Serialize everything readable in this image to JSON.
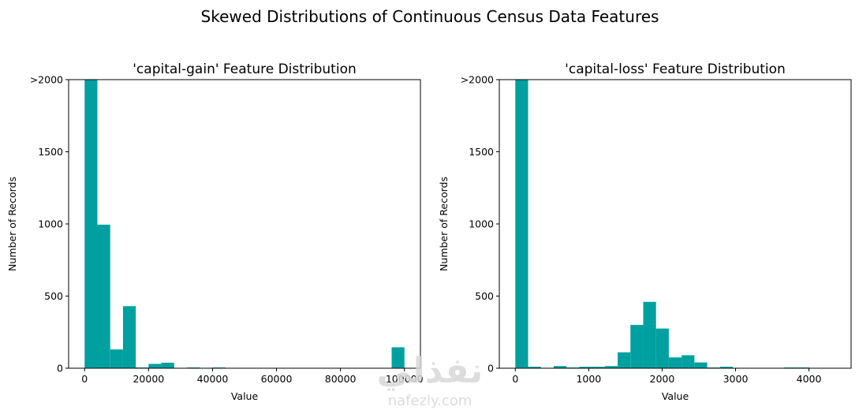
{
  "figure": {
    "suptitle": "Skewed Distributions of Continuous Census Data Features",
    "watermark": {
      "arabic": "نفذلي",
      "latin": "nafezly.com"
    }
  },
  "chart_data": [
    {
      "type": "bar",
      "title": "'capital-gain' Feature Distribution",
      "xlabel": "Value",
      "ylabel": "Number of Records",
      "color": "#00A0A0",
      "xlim": [
        -5000,
        104999
      ],
      "ylim": [
        0,
        2000
      ],
      "xticks": [
        0,
        20000,
        40000,
        60000,
        80000,
        100000
      ],
      "xtick_labels": [
        "0",
        "20000",
        "40000",
        "60000",
        "80000",
        "100000"
      ],
      "yticks": [
        0,
        500,
        1000,
        1500,
        2000
      ],
      "ytick_labels": [
        "0",
        "500",
        "1000",
        "1500",
        ">2000"
      ],
      "bin_width": 3999.96,
      "bins_start": [
        0,
        4000,
        8000,
        12000,
        16000,
        20000,
        24000,
        28000,
        32000,
        36000,
        40000,
        44000,
        48000,
        52000,
        56000,
        60000,
        64000,
        68000,
        72000,
        76000,
        80000,
        84000,
        88000,
        92000,
        96000
      ],
      "values": [
        2000,
        995,
        130,
        430,
        5,
        30,
        38,
        0,
        5,
        0,
        5,
        0,
        0,
        0,
        0,
        0,
        0,
        0,
        0,
        0,
        0,
        0,
        0,
        0,
        145
      ]
    },
    {
      "type": "bar",
      "title": "'capital-loss' Feature Distribution",
      "xlabel": "Value",
      "ylabel": "Number of Records",
      "color": "#00A0A0",
      "xlim": [
        -218,
        4574
      ],
      "ylim": [
        0,
        2000
      ],
      "xticks": [
        0,
        1000,
        2000,
        3000,
        4000
      ],
      "xtick_labels": [
        "0",
        "1000",
        "2000",
        "3000",
        "4000"
      ],
      "yticks": [
        0,
        500,
        1000,
        1500,
        2000
      ],
      "ytick_labels": [
        "0",
        "500",
        "1000",
        "1500",
        ">2000"
      ],
      "bin_width": 174.24,
      "bins_start": [
        0,
        174.24,
        348.48,
        522.72,
        696.96,
        871.2,
        1045.44,
        1219.68,
        1393.92,
        1568.16,
        1742.4,
        1916.64,
        2090.88,
        2265.12,
        2439.36,
        2613.6,
        2787.84,
        2962.08,
        3136.32,
        3310.56,
        3484.8,
        3659.04,
        3833.28,
        4007.52,
        4181.76
      ],
      "values": [
        2000,
        10,
        0,
        15,
        5,
        10,
        10,
        15,
        110,
        300,
        460,
        275,
        75,
        90,
        40,
        5,
        10,
        0,
        0,
        0,
        0,
        5,
        5,
        0,
        0
      ]
    }
  ]
}
